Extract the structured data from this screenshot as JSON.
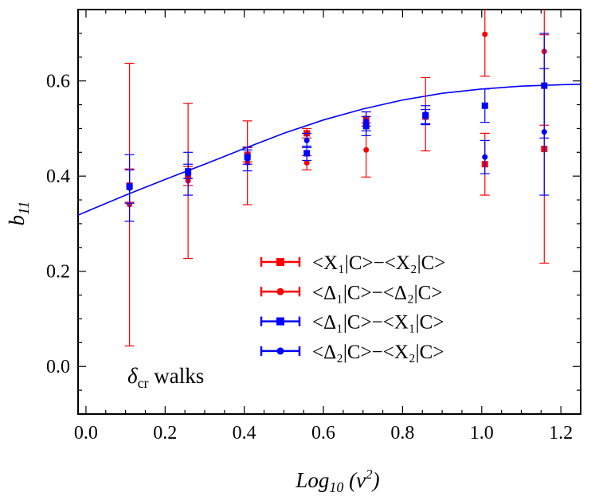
{
  "chart_data": {
    "type": "scatter",
    "xlabel": "Log",
    "xlabel_sub": "10",
    "xlabel_tail": " (ν",
    "xlabel_sup": "2",
    "xlabel_end": ")",
    "ylabel": "b",
    "ylabel_sub": "11",
    "xlim": [
      -0.02,
      1.25
    ],
    "ylim": [
      -0.1,
      0.75
    ],
    "xticks": [
      0.0,
      0.2,
      0.4,
      0.6,
      0.8,
      1.0,
      1.2
    ],
    "xtick_labels": [
      "0.0",
      "0.2",
      "0.4",
      "0.6",
      "0.8",
      "1.0",
      "1.2"
    ],
    "yticks": [
      0.0,
      0.2,
      0.4,
      0.6
    ],
    "ytick_labels": [
      "0.0",
      "0.2",
      "0.4",
      "0.6"
    ],
    "grid": false,
    "legend_position": "bottom-right",
    "annotation": {
      "symbol": "δ",
      "sub": "cr",
      "text": " walks",
      "position": "bottom-left"
    },
    "x": [
      0.11,
      0.258,
      0.408,
      0.558,
      0.708,
      0.858,
      1.008,
      1.158
    ],
    "series": [
      {
        "name": "<X₁|C>−<X₂|C>",
        "color": "#ff0000",
        "marker": "square",
        "y": [
          0.38,
          0.4,
          0.445,
          0.49,
          0.52,
          0.525,
          0.425,
          0.457
        ],
        "yerr": [
          0.035,
          0.02,
          0.015,
          0.01,
          0.015,
          0.015,
          0.065,
          0.24
        ]
      },
      {
        "name": "<Δ₁|C>−<Δ₂|C>",
        "color": "#ff0000",
        "marker": "circle",
        "y": [
          0.34,
          0.39,
          0.428,
          0.428,
          0.455,
          0.53,
          0.698,
          0.662
        ],
        "yerr": [
          0.297,
          0.163,
          0.088,
          0.015,
          0.057,
          0.077,
          0.088,
          0.155
        ]
      },
      {
        "name": "<Δ₁|C>−<X₁|C>",
        "color": "#0000ff",
        "marker": "square",
        "y": [
          0.378,
          0.41,
          0.44,
          0.448,
          0.505,
          0.528,
          0.548,
          0.59
        ],
        "yerr": [
          0.035,
          0.015,
          0.015,
          0.015,
          0.02,
          0.02,
          0.035,
          0.11
        ]
      },
      {
        "name": "<Δ₂|C>−<X₂|C>",
        "color": "#0000ff",
        "marker": "circle",
        "y": [
          0.375,
          0.405,
          0.436,
          0.475,
          0.515,
          0.525,
          0.44,
          0.493
        ],
        "yerr": [
          0.07,
          0.045,
          0.025,
          0.015,
          0.02,
          0.015,
          0.035,
          0.133
        ]
      }
    ],
    "fit_curve": {
      "color": "#0000ff",
      "x": [
        -0.02,
        0.0,
        0.1,
        0.2,
        0.3,
        0.4,
        0.5,
        0.6,
        0.7,
        0.8,
        0.9,
        1.0,
        1.1,
        1.2,
        1.25
      ],
      "y": [
        0.318,
        0.325,
        0.36,
        0.393,
        0.425,
        0.458,
        0.49,
        0.518,
        0.541,
        0.56,
        0.574,
        0.583,
        0.589,
        0.592,
        0.593
      ]
    }
  }
}
